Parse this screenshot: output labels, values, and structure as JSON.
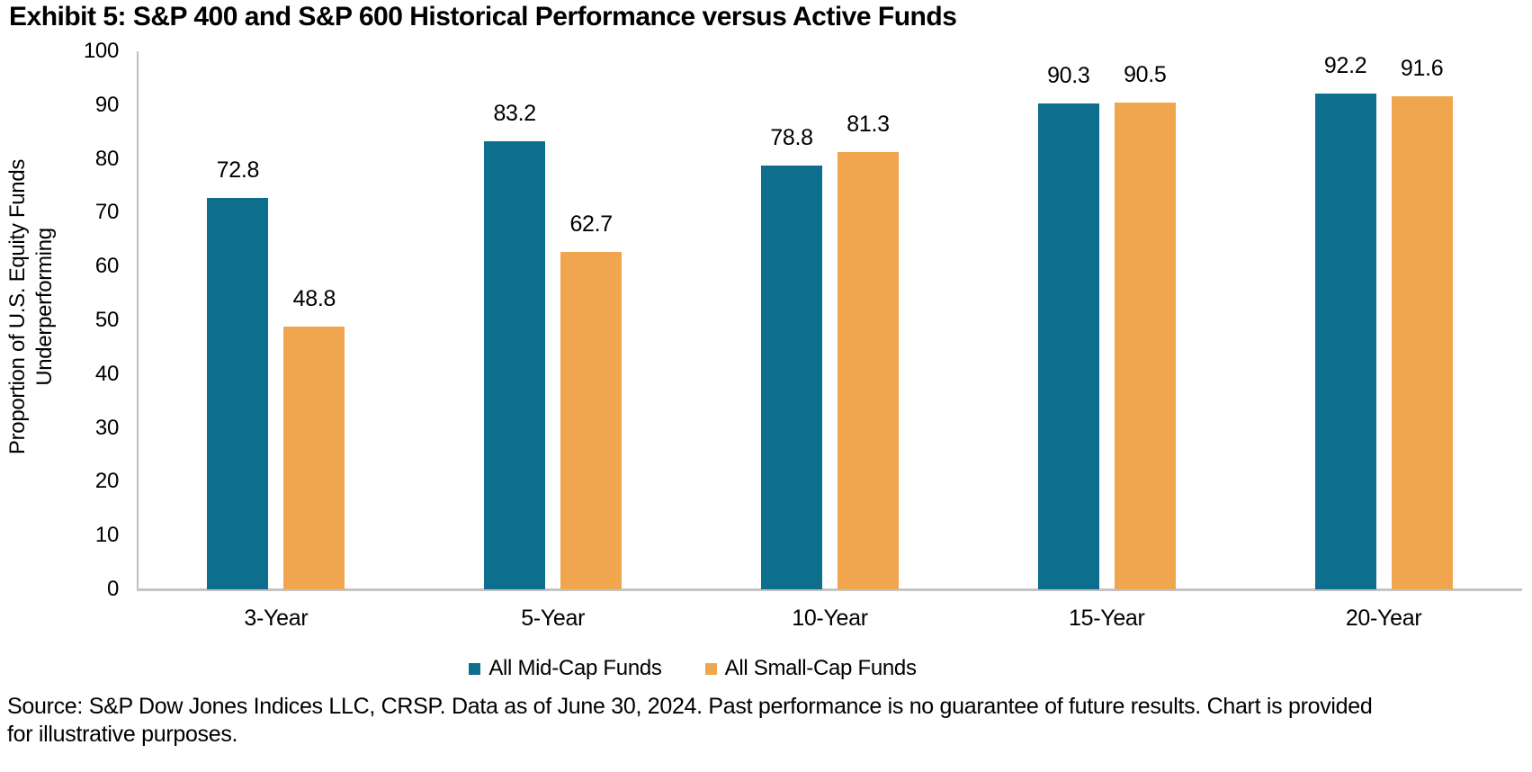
{
  "title": "Exhibit 5: S&P 400 and S&P 600 Historical Performance versus Active Funds",
  "chart_data": {
    "type": "bar",
    "categories": [
      "3-Year",
      "5-Year",
      "10-Year",
      "15-Year",
      "20-Year"
    ],
    "series": [
      {
        "name": "All Mid-Cap Funds",
        "color": "#0D6E8E",
        "values": [
          72.8,
          83.2,
          78.8,
          90.3,
          92.2
        ]
      },
      {
        "name": "All Small-Cap Funds",
        "color": "#F0A64E",
        "values": [
          48.8,
          62.7,
          81.3,
          90.5,
          91.6
        ]
      }
    ],
    "ylabel_lines": [
      "Proportion of U.S. Equity Funds",
      "Underperforming"
    ],
    "xlabel": "",
    "ylim": [
      0,
      100
    ],
    "ytick_step": 10,
    "grid": false,
    "legend_position": "bottom",
    "value_labels": true
  },
  "colors": {
    "axis": "#BFBFBF",
    "text": "#000000",
    "background": "#FFFFFF"
  },
  "footer": {
    "source_lines": [
      "Source: S&P Dow Jones Indices LLC, CRSP. Data as of June 30, 2024. Past performance is no guarantee of future results. Chart is provided",
      "for illustrative purposes."
    ]
  }
}
